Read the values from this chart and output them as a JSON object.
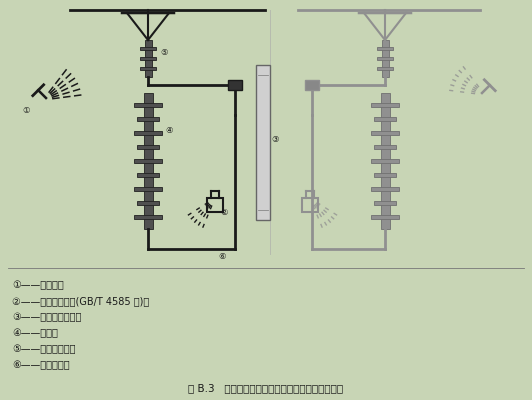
{
  "bg_color": "#c8d5b5",
  "title": "图 B.3   典型的雨和盐雾喷射系统以及氙弧灯的设置",
  "legend_items": [
    "①——雨喷嘴；",
    "②——盐雾喷射喷嘴(GB/T 4585 型)；",
    "③——紫外线氙弧灯；",
    "④——试品；",
    "⑤——隔离绝缘子；",
    "⑥——高压电源。"
  ],
  "text_color": "#1a1a1a",
  "line_color": "#1a1a1a",
  "gray_color": "#909090",
  "insulator_color_left": "#505050",
  "insulator_color_right": "#909090"
}
